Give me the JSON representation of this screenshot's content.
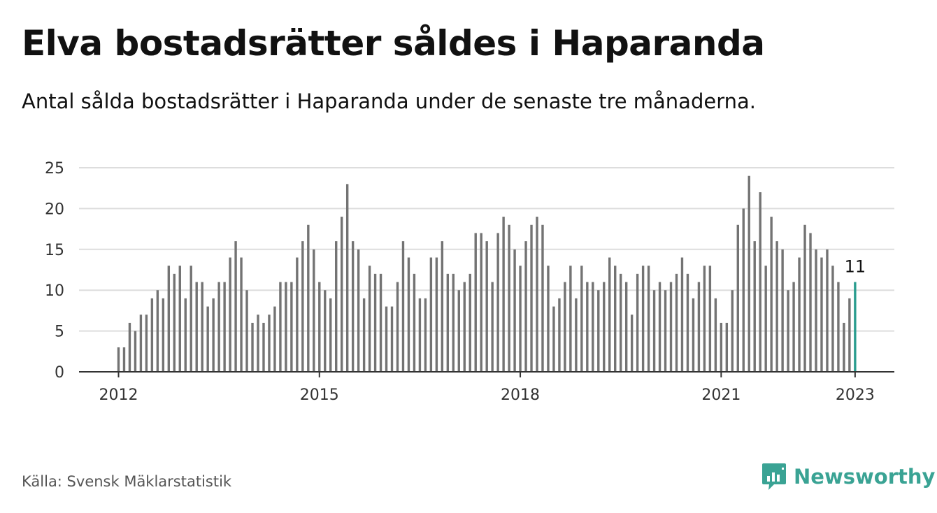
{
  "title": "Elva bostadsrätter såldes i Haparanda",
  "subtitle": "Antal sålda bostadsrätter i Haparanda under de senaste tre månaderna.",
  "source": "Källa: Svensk Mäklarstatistik",
  "brand": {
    "name": "Newsworthy",
    "icon": "newsworthy-logo-icon"
  },
  "colors": {
    "bar": "#737373",
    "highlight": "#2a9d8f",
    "grid": "#dddddd",
    "axis": "#333333"
  },
  "chart_data": {
    "type": "bar",
    "title": "Elva bostadsrätter såldes i Haparanda",
    "xlabel": "",
    "ylabel": "",
    "ylim": [
      0,
      25
    ],
    "yticks": [
      0,
      5,
      10,
      15,
      20,
      25
    ],
    "xticks": [
      {
        "label": "2012",
        "index": 0
      },
      {
        "label": "2015",
        "index": 36
      },
      {
        "label": "2018",
        "index": 72
      },
      {
        "label": "2021",
        "index": 108
      },
      {
        "label": "2023",
        "index": 132
      }
    ],
    "start": "2012-01",
    "end": "2023-01",
    "frequency": "monthly",
    "values": [
      3,
      3,
      6,
      5,
      7,
      7,
      9,
      10,
      9,
      13,
      12,
      13,
      9,
      13,
      11,
      11,
      8,
      9,
      11,
      11,
      14,
      16,
      14,
      10,
      6,
      7,
      6,
      7,
      8,
      11,
      11,
      11,
      14,
      16,
      18,
      15,
      11,
      10,
      9,
      16,
      19,
      23,
      16,
      15,
      9,
      13,
      12,
      12,
      8,
      8,
      11,
      16,
      14,
      12,
      9,
      9,
      14,
      14,
      16,
      12,
      12,
      10,
      11,
      12,
      17,
      17,
      16,
      11,
      17,
      19,
      18,
      15,
      13,
      16,
      18,
      19,
      18,
      13,
      8,
      9,
      11,
      13,
      9,
      13,
      11,
      11,
      10,
      11,
      14,
      13,
      12,
      11,
      7,
      12,
      13,
      13,
      10,
      11,
      10,
      11,
      12,
      14,
      12,
      9,
      11,
      13,
      13,
      9,
      6,
      6,
      10,
      18,
      20,
      24,
      16,
      22,
      13,
      19,
      16,
      15,
      10,
      11,
      14,
      18,
      17,
      15,
      14,
      15,
      13,
      11,
      6,
      9,
      11
    ],
    "highlight_index": 132,
    "annotation": "11"
  }
}
